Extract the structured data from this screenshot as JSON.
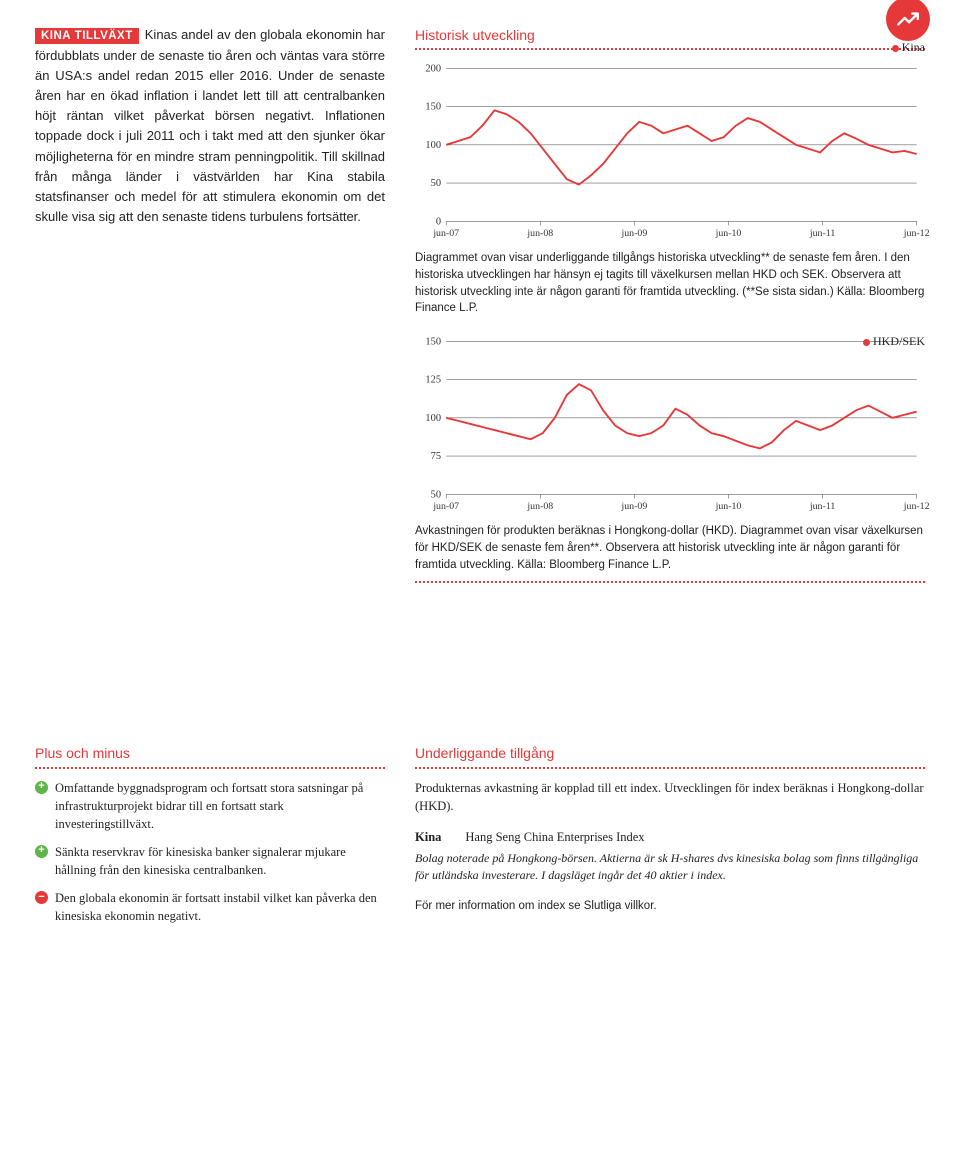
{
  "header": {
    "tag": "KINA TILLVÄXT",
    "body_text": "Kinas andel av den globala ekonomin har fördubblats under de senaste tio åren och väntas vara större än USA:s andel redan 2015 eller 2016. Under de senaste åren har en ökad inflation i landet lett till att centralbanken höjt räntan vilket påverkat börsen negativt. Inflationen toppade dock i juli 2011 och i takt med att den sjunker ökar möjligheterna för en mindre stram penningpolitik. Till skillnad från många länder i västvärlden har Kina stabila statsfinanser och medel för att stimulera ekonomin om det skulle visa sig att den senaste tidens turbulens fortsätter."
  },
  "chart1": {
    "title": "Historisk utveckling",
    "legend": "Kina",
    "ylim": [
      0,
      200
    ],
    "ytick_step": 50,
    "ytick_labels": [
      "0",
      "50",
      "100",
      "150",
      "200"
    ],
    "xlabels": [
      "jun-07",
      "jun-08",
      "jun-09",
      "jun-10",
      "jun-11",
      "jun-12"
    ],
    "line_color": "#e63838",
    "grid_color": "#666666",
    "caption": "Diagrammet ovan visar underliggande tillgångs historiska utveckling** de senaste fem åren. I den historiska utvecklingen har hänsyn ej tagits till växelkursen mellan HKD och SEK. Observera att historisk utveckling inte är någon garanti för framtida utveckling. (**Se sista sidan.) Källa: Bloomberg Finance L.P.",
    "data": [
      100,
      105,
      110,
      125,
      145,
      140,
      130,
      115,
      95,
      75,
      55,
      48,
      60,
      75,
      95,
      115,
      130,
      125,
      115,
      120,
      125,
      115,
      105,
      110,
      125,
      135,
      130,
      120,
      110,
      100,
      95,
      90,
      105,
      115,
      108,
      100,
      95,
      90,
      92,
      88
    ]
  },
  "chart2": {
    "legend": "HKD/SEK",
    "ylim": [
      50,
      150
    ],
    "ytick_step": 25,
    "ytick_labels": [
      "50",
      "75",
      "100",
      "125",
      "150"
    ],
    "xlabels": [
      "jun-07",
      "jun-08",
      "jun-09",
      "jun-10",
      "jun-11",
      "jun-12"
    ],
    "line_color": "#e63838",
    "grid_color": "#666666",
    "caption": "Avkastningen för produkten beräknas i Hongkong-dollar (HKD). Diagrammet ovan visar växelkursen för HKD/SEK de senaste fem åren**. Observera att historisk utveckling inte är någon garanti för framtida utveckling. Källa: Bloomberg Finance L.P.",
    "data": [
      100,
      98,
      96,
      94,
      92,
      90,
      88,
      86,
      90,
      100,
      115,
      122,
      118,
      105,
      95,
      90,
      88,
      90,
      95,
      106,
      102,
      95,
      90,
      88,
      85,
      82,
      80,
      84,
      92,
      98,
      95,
      92,
      95,
      100,
      105,
      108,
      104,
      100,
      102,
      104
    ]
  },
  "plus_minus": {
    "title": "Plus och minus",
    "plus": [
      "Omfattande byggnadsprogram och fortsatt stora satsningar på infrastrukturprojekt bidrar till en fortsatt stark investeringstillväxt.",
      "Sänkta reservkrav för kinesiska banker signalerar mjukare hållning från den kinesiska centralbanken."
    ],
    "minus": [
      "Den globala ekonomin är fortsatt instabil vilket kan påverka den kinesiska ekonomin negativt."
    ]
  },
  "under": {
    "title": "Underliggande tillgång",
    "para1": "Produkternas avkastning är kopplad till ett index. Utvecklingen för index beräknas i Hongkong-dollar (HKD).",
    "kina_label": "Kina",
    "kina_index": "Hang Seng China Enterprises Index",
    "italic": "Bolag noterade på Hongkong-börsen. Aktierna är sk H-shares dvs kinesiska bolag som finns tillgängliga för utländska investerare. I dagsläget ingår det 40 aktier i index.",
    "link": "För mer information om index se Slutliga villkor."
  }
}
